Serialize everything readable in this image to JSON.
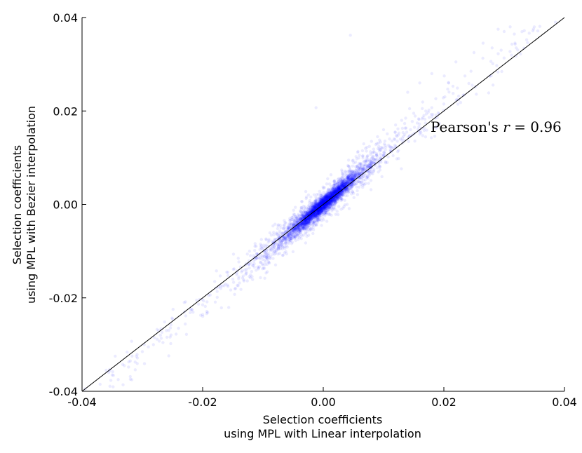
{
  "chart_data": {
    "type": "scatter",
    "title": "",
    "xlabel_lines": [
      "Selection coefficients",
      "using MPL with Linear interpolation"
    ],
    "ylabel_lines": [
      "Selection coefficients",
      "using MPL with Bezier interpolation"
    ],
    "xlim": [
      -0.04,
      0.04
    ],
    "ylim": [
      -0.04,
      0.04
    ],
    "xticks": [
      -0.04,
      -0.02,
      0.0,
      0.02,
      0.04
    ],
    "yticks": [
      -0.04,
      -0.02,
      0.0,
      0.02,
      0.04
    ],
    "xtick_labels": [
      "-0.04",
      "-0.02",
      "0.00",
      "0.02",
      "0.04"
    ],
    "ytick_labels": [
      "-0.04",
      "-0.02",
      "0.00",
      "0.02",
      "0.04"
    ],
    "grid": false,
    "marker_color": "#0000ff",
    "marker_alpha": 0.08,
    "reference_line": {
      "from": [
        -0.04,
        -0.04
      ],
      "to": [
        0.04,
        0.04
      ],
      "color": "#000000"
    },
    "annotation": {
      "prefix": "Pearson's ",
      "var": "r",
      "op": " = ",
      "value": "0.96"
    },
    "points": [
      [
        0.0045,
        0.0362
      ],
      [
        0.03,
        0.037
      ],
      [
        0.029,
        0.0375
      ],
      [
        0.031,
        0.038
      ],
      [
        0.0265,
        0.0345
      ],
      [
        0.028,
        0.0335
      ],
      [
        0.025,
        0.0325
      ],
      [
        0.022,
        0.0305
      ],
      [
        0.018,
        0.028
      ],
      [
        0.016,
        0.026
      ],
      [
        0.014,
        0.024
      ],
      [
        0.02,
        0.0215
      ],
      [
        0.017,
        0.02
      ],
      [
        0.015,
        0.0195
      ],
      [
        0.013,
        0.018
      ],
      [
        0.012,
        0.017
      ],
      [
        0.01,
        0.016
      ],
      [
        0.009,
        0.0145
      ],
      [
        0.011,
        0.014
      ],
      [
        -0.0012,
        0.0207
      ],
      [
        0.008,
        0.0135
      ],
      [
        0.007,
        0.012
      ],
      [
        0.0065,
        0.0115
      ],
      [
        0.006,
        0.0105
      ],
      [
        -0.011,
        -0.0115
      ],
      [
        -0.012,
        -0.0125
      ],
      [
        -0.01,
        -0.011
      ],
      [
        -0.013,
        -0.014
      ],
      [
        -0.009,
        -0.0105
      ],
      [
        -0.015,
        -0.016
      ],
      [
        -0.017,
        -0.018
      ],
      [
        -0.019,
        -0.0195
      ],
      [
        -0.021,
        -0.0205
      ],
      [
        -0.023,
        -0.023
      ],
      [
        -0.025,
        -0.0245
      ],
      [
        -0.027,
        -0.028
      ],
      [
        -0.026,
        -0.027
      ],
      [
        -0.029,
        -0.0305
      ],
      [
        -0.031,
        -0.0325
      ],
      [
        -0.033,
        -0.0345
      ],
      [
        -0.035,
        -0.0365
      ],
      [
        -0.037,
        -0.0385
      ],
      [
        -0.034,
        -0.0375
      ],
      [
        -0.03,
        -0.0315
      ],
      [
        -0.028,
        -0.0285
      ],
      [
        -0.024,
        -0.0265
      ],
      [
        -0.022,
        -0.0225
      ],
      [
        -0.02,
        -0.0215
      ],
      [
        -0.018,
        -0.0165
      ],
      [
        -0.016,
        -0.0145
      ],
      [
        -0.014,
        -0.0155
      ],
      [
        -0.036,
        -0.0355
      ],
      [
        -0.032,
        -0.0335
      ],
      [
        -0.0395,
        -0.0395
      ],
      [
        0.032,
        0.0335
      ],
      [
        0.035,
        0.038
      ],
      [
        0.0385,
        0.039
      ],
      [
        0.0235,
        0.0275
      ],
      [
        0.0245,
        0.0285
      ]
    ]
  }
}
